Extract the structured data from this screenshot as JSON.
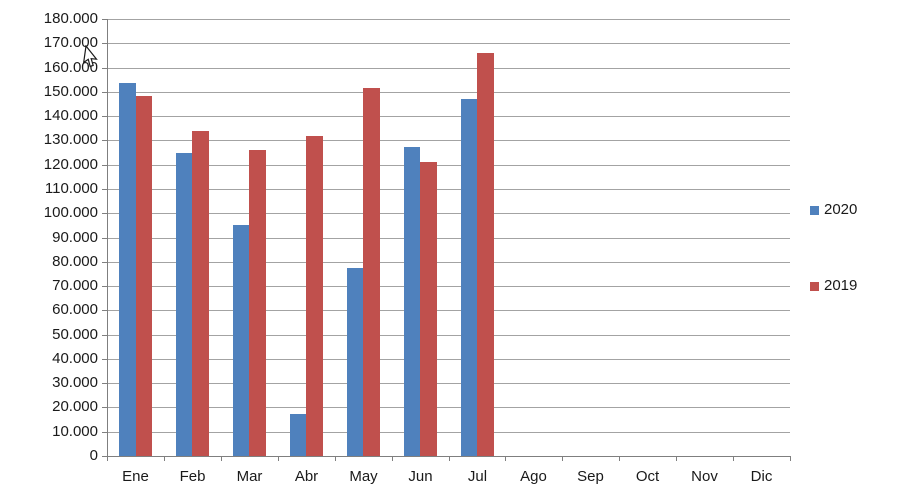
{
  "chart_data": {
    "type": "bar",
    "title": "",
    "xlabel": "",
    "ylabel": "",
    "categories": [
      "Ene",
      "Feb",
      "Mar",
      "Abr",
      "May",
      "Jun",
      "Jul",
      "Ago",
      "Sep",
      "Oct",
      "Nov",
      "Dic"
    ],
    "series": [
      {
        "name": "2020",
        "color": "#4f81bd",
        "values": [
          153500,
          125000,
          95000,
          17500,
          77500,
          127500,
          147000,
          null,
          null,
          null,
          null,
          null
        ]
      },
      {
        "name": "2019",
        "color": "#c0504d",
        "values": [
          148500,
          134000,
          126000,
          132000,
          151500,
          121000,
          166000,
          null,
          null,
          null,
          null,
          null
        ]
      }
    ],
    "ylim": [
      0,
      180000
    ],
    "ytick_step": 10000,
    "y_tick_labels": [
      "0",
      "10.000",
      "20.000",
      "30.000",
      "40.000",
      "50.000",
      "60.000",
      "70.000",
      "80.000",
      "90.000",
      "100.000",
      "110.000",
      "120.000",
      "130.000",
      "140.000",
      "150.000",
      "160.000",
      "170.000",
      "180.000"
    ],
    "grid": true,
    "legend_position": "right",
    "legend_entries": [
      "2020",
      "2019"
    ]
  },
  "colors": {
    "series_2020": "#4f81bd",
    "series_2019": "#c0504d",
    "gridline": "#a3a3a3",
    "axis": "#7f7f7f",
    "text": "#1a1a1a",
    "background": "#ffffff"
  }
}
